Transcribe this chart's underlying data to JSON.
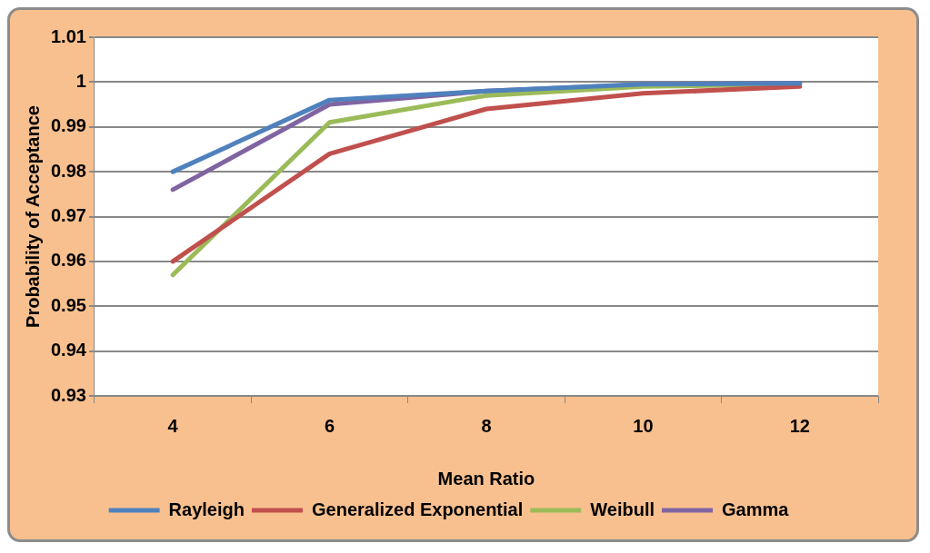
{
  "chart_data": {
    "type": "line",
    "xlabel": "Mean Ratio",
    "ylabel": "Probability of Acceptance",
    "categories": [
      "4",
      "6",
      "8",
      "10",
      "12"
    ],
    "series": [
      {
        "name": "Rayleigh",
        "color": "#4f81bd",
        "values": [
          0.98,
          0.996,
          0.998,
          0.9995,
          0.9997
        ]
      },
      {
        "name": "Generalized Exponential",
        "color": "#c0504d",
        "values": [
          0.96,
          0.984,
          0.994,
          0.9975,
          0.999
        ]
      },
      {
        "name": "Weibull",
        "color": "#9bbb59",
        "values": [
          0.957,
          0.991,
          0.997,
          0.999,
          0.9995
        ]
      },
      {
        "name": "Gamma",
        "color": "#8064a2",
        "values": [
          0.976,
          0.995,
          0.998,
          0.9994,
          0.9997
        ]
      }
    ],
    "ylim": [
      0.93,
      1.01
    ],
    "yticks": [
      0.93,
      0.94,
      0.95,
      0.96,
      0.97,
      0.98,
      0.99,
      1,
      1.01
    ],
    "grid": "y",
    "legend": "bottom",
    "marker": "none",
    "line_style": "solid"
  }
}
